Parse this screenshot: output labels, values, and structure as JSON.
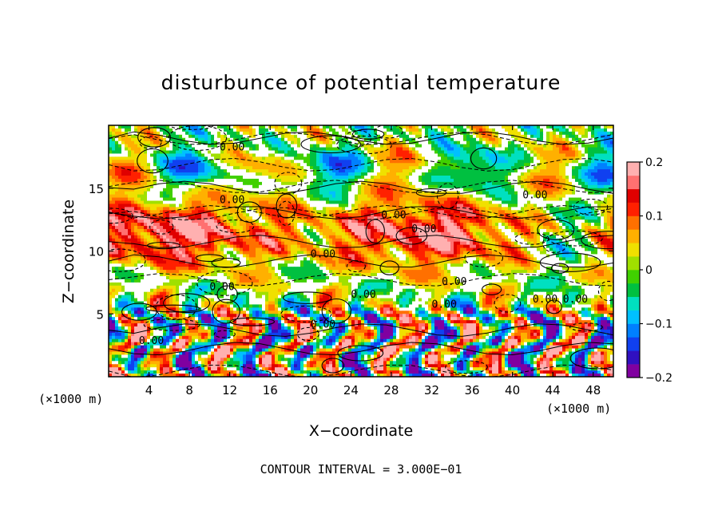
{
  "chart_data": {
    "type": "heatmap",
    "title": "disturbunce of potential temperature",
    "xlabel": "X−coordinate",
    "ylabel": "Z−coordinate",
    "x_unit_left": "(×1000 m)",
    "x_unit_right": "(×1000 m)",
    "xlim": [
      0,
      50
    ],
    "ylim": [
      0,
      20
    ],
    "x_ticks": [
      4,
      8,
      12,
      16,
      20,
      24,
      28,
      32,
      36,
      40,
      44,
      48
    ],
    "y_ticks": [
      5,
      10,
      15
    ],
    "colorbar": {
      "range": [
        -0.2,
        0.2
      ],
      "ticks": [
        {
          "value": 0.2,
          "label": "0.2"
        },
        {
          "value": 0.1,
          "label": "0.1"
        },
        {
          "value": 0.0,
          "label": "0"
        },
        {
          "value": -0.1,
          "label": "−0.1"
        },
        {
          "value": -0.2,
          "label": "−0.2"
        }
      ],
      "colors": [
        "#8000a0",
        "#3010c0",
        "#1040f0",
        "#0080ff",
        "#00c0ff",
        "#00e0c0",
        "#00c040",
        "#40d000",
        "#a0e000",
        "#f0e000",
        "#ffb000",
        "#ff7000",
        "#ff2000",
        "#e00000",
        "#ff7070",
        "#ffb0b0"
      ]
    },
    "contour_interval_text": "CONTOUR INTERVAL = 3.000E−01",
    "contour_labels": [
      "0.00",
      "0.00",
      "0.00",
      "0.00",
      "0.00",
      "0.00",
      "0.00",
      "0.00",
      "0.00",
      "0.00",
      "0.00",
      "0.00",
      "0.00",
      "0.00"
    ]
  }
}
